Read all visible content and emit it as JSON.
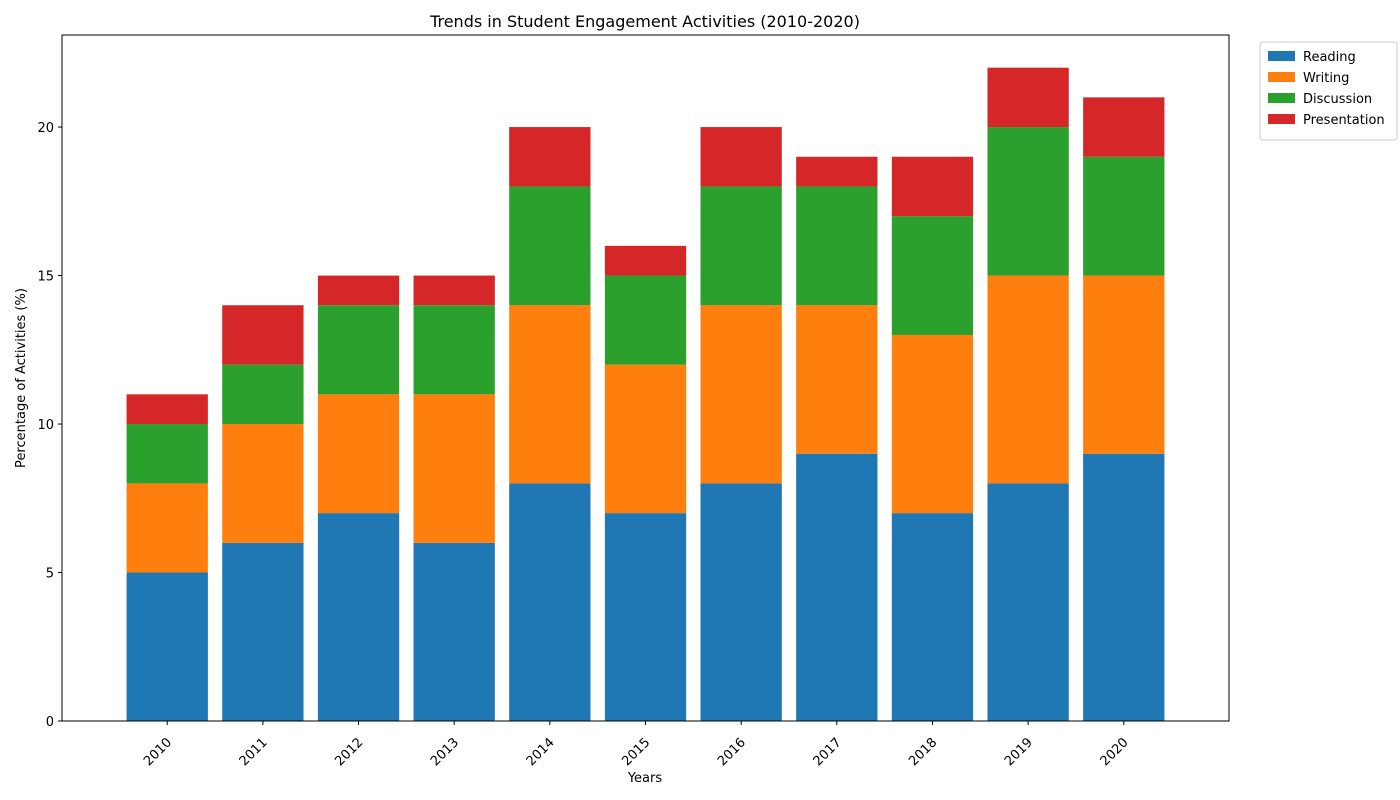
{
  "chart_data": {
    "type": "bar",
    "stacked": true,
    "title": "Trends in Student Engagement Activities (2010-2020)",
    "xlabel": "Years",
    "ylabel": "Percentage of Activities (%)",
    "ylim": [
      0,
      23.1
    ],
    "yticks": [
      0,
      5,
      10,
      15,
      20
    ],
    "categories": [
      "2010",
      "2011",
      "2012",
      "2013",
      "2014",
      "2015",
      "2016",
      "2017",
      "2018",
      "2019",
      "2020"
    ],
    "series": [
      {
        "name": "Reading",
        "color": "#1f77b4",
        "values": [
          5,
          6,
          7,
          6,
          8,
          7,
          8,
          9,
          7,
          8,
          9
        ]
      },
      {
        "name": "Writing",
        "color": "#ff7f0e",
        "values": [
          3,
          4,
          4,
          5,
          6,
          5,
          6,
          5,
          6,
          7,
          6
        ]
      },
      {
        "name": "Discussion",
        "color": "#2ca02c",
        "values": [
          2,
          2,
          3,
          3,
          4,
          3,
          4,
          4,
          4,
          5,
          4
        ]
      },
      {
        "name": "Presentation",
        "color": "#d62728",
        "values": [
          1,
          2,
          1,
          1,
          2,
          1,
          2,
          1,
          2,
          2,
          2
        ]
      }
    ],
    "grid": false,
    "legend_position": "outside-top-right",
    "xtick_rotation": 45
  }
}
